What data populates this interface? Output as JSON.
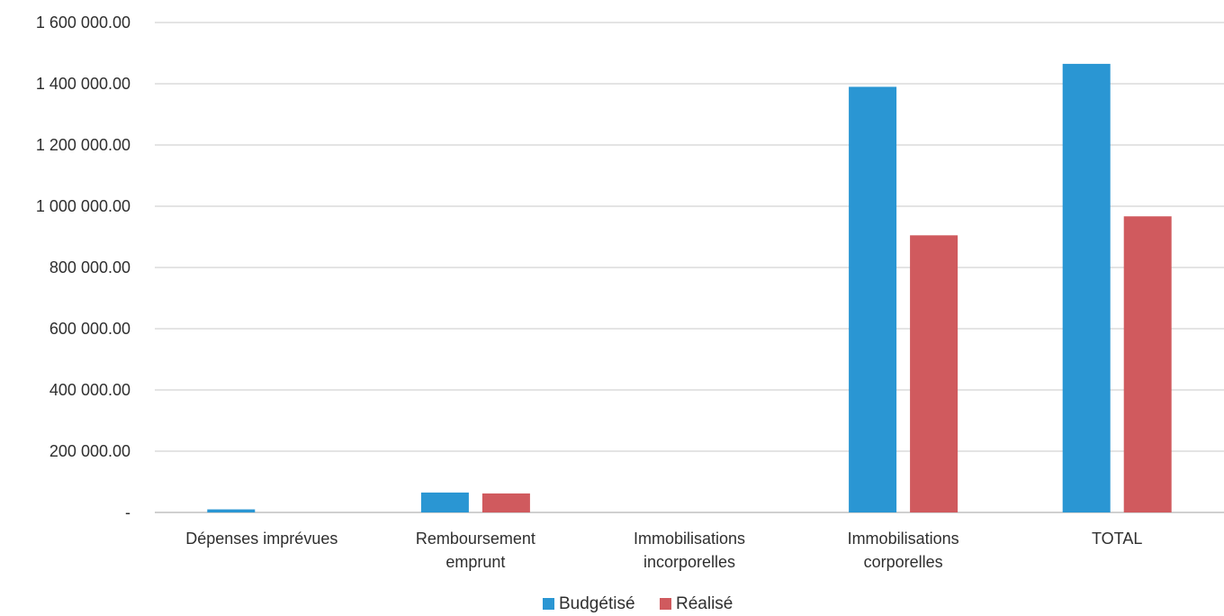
{
  "chart_data": {
    "type": "bar",
    "title": "",
    "xlabel": "",
    "ylabel": "",
    "categories": [
      [
        "Dépenses imprévues"
      ],
      [
        "Remboursement",
        "emprunt"
      ],
      [
        "Immobilisations",
        "incorporelles"
      ],
      [
        "Immobilisations",
        "corporelles"
      ],
      [
        "TOTAL"
      ]
    ],
    "series": [
      {
        "name": "Budgétisé",
        "color": "#2a96d3",
        "values": [
          10000,
          65000,
          0,
          1390000,
          1465000
        ]
      },
      {
        "name": "Réalisé",
        "color": "#d05a5e",
        "values": [
          0,
          62000,
          0,
          905000,
          967000
        ]
      }
    ],
    "ylim": [
      0,
      1600000
    ],
    "y_ticks": [
      0,
      200000,
      400000,
      600000,
      800000,
      1000000,
      1200000,
      1400000,
      1600000
    ],
    "y_tick_labels": [
      "-",
      "200 000.00",
      "400 000.00",
      "600 000.00",
      "800 000.00",
      "1 000 000.00",
      "1 200 000.00",
      "1 400 000.00",
      "1 600 000.00"
    ],
    "grid": true,
    "legend_position": "bottom-center"
  }
}
